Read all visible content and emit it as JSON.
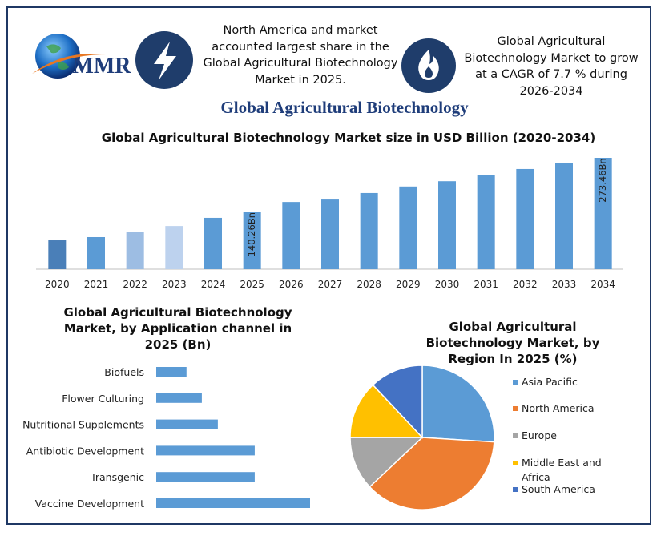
{
  "header": {
    "logo": "MMR",
    "info_left": "North America and market accounted largest share in the Global Agricultural Biotechnology Market in 2025.",
    "info_right": "Global Agricultural Biotechnology Market to grow at a CAGR of 7.7 % during 2026-2034",
    "title": "Global Agricultural Biotechnology"
  },
  "chart_data": [
    {
      "type": "bar",
      "title": "Global Agricultural Biotechnology Market size in USD Billion (2020-2034)",
      "categories": [
        "2020",
        "2021",
        "2022",
        "2023",
        "2024",
        "2025",
        "2026",
        "2027",
        "2028",
        "2029",
        "2030",
        "2031",
        "2032",
        "2033",
        "2034"
      ],
      "values": [
        70.8,
        78.7,
        92.4,
        106,
        126,
        140.26,
        165,
        171,
        187,
        203,
        216,
        232,
        246,
        260,
        273.46
      ],
      "value_labels": [
        null,
        null,
        null,
        null,
        null,
        "140.26Bn",
        null,
        null,
        null,
        null,
        null,
        null,
        null,
        null,
        "273.46Bn"
      ],
      "colors": [
        "#4a7fb8",
        "#5b9bd5",
        "#9dbde3",
        "#bdd2ee",
        "#5b9bd5",
        "#5b9bd5",
        "#5b9bd5",
        "#5b9bd5",
        "#5b9bd5",
        "#5b9bd5",
        "#5b9bd5",
        "#5b9bd5",
        "#5b9bd5",
        "#5b9bd5",
        "#5b9bd5"
      ]
    },
    {
      "type": "barh",
      "title": "Global Agricultural Biotechnology Market, by Application channel in 2025 (Bn)",
      "categories": [
        "Biofuels",
        "Flower Culturing",
        "Nutritional Supplements",
        "Antibiotic Development",
        "Transgenic",
        "Vaccine Development"
      ],
      "values": [
        8.7,
        13.1,
        17.7,
        28.3,
        28.3,
        44.2
      ],
      "color": "#5b9bd5"
    },
    {
      "type": "pie",
      "title": "Global Agricultural Biotechnology Market, by Region In 2025 (%)",
      "categories": [
        "Asia Pacific",
        "North America",
        "Europe",
        "Middle East and Africa",
        "South America"
      ],
      "values": [
        26,
        37,
        12,
        13,
        12
      ],
      "colors": [
        "#5b9bd5",
        "#ed7d31",
        "#a5a5a5",
        "#ffc000",
        "#4472c4"
      ],
      "legend": "right"
    }
  ]
}
